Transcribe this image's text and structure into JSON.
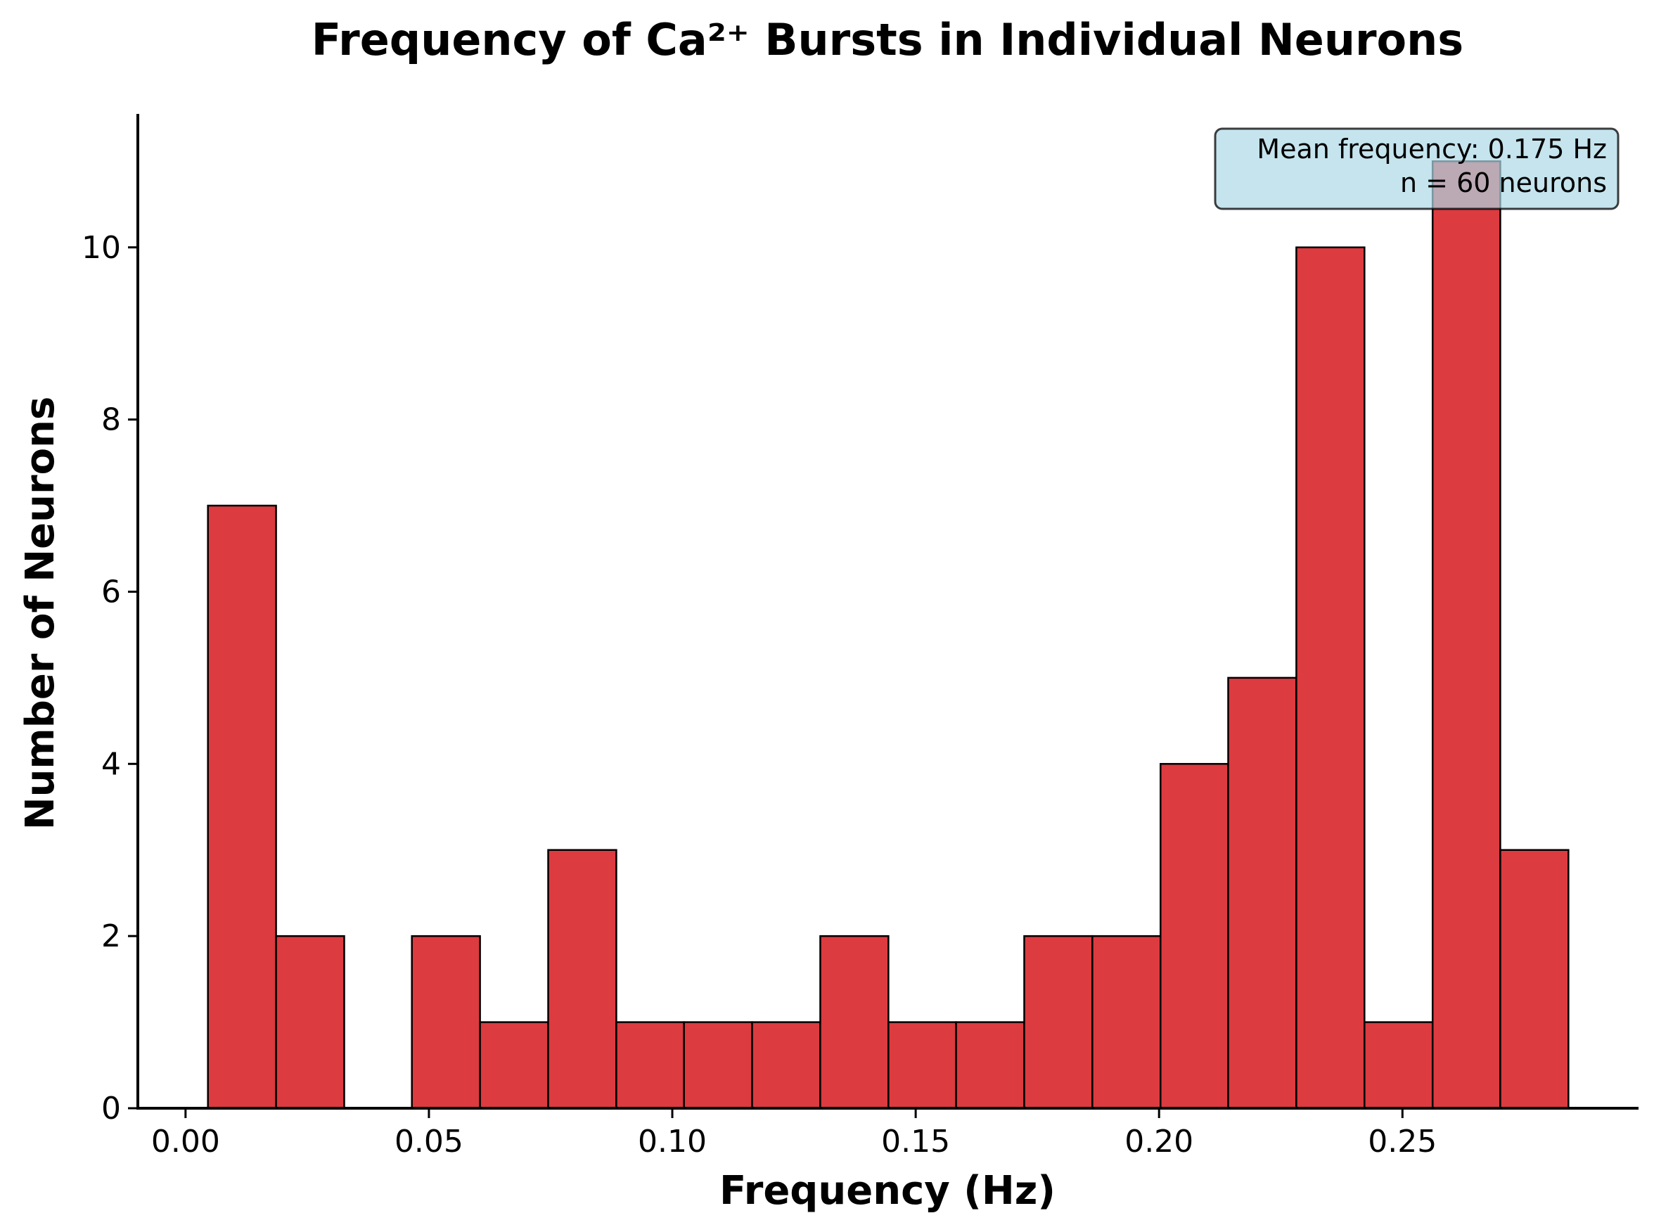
{
  "chart_data": {
    "type": "bar",
    "title": "Frequency of Ca²⁺ Bursts in Individual Neurons",
    "xlabel": "Frequency (Hz)",
    "ylabel": "Number of Neurons",
    "bin_edges": [
      0.0046,
      0.0186,
      0.0326,
      0.0465,
      0.0605,
      0.0745,
      0.0885,
      0.1024,
      0.1164,
      0.1304,
      0.1444,
      0.1583,
      0.1723,
      0.1863,
      0.2003,
      0.2142,
      0.2282,
      0.2422,
      0.2562,
      0.2701,
      0.2841
    ],
    "values": [
      7,
      2,
      0,
      2,
      1,
      3,
      1,
      1,
      1,
      2,
      1,
      1,
      2,
      2,
      4,
      5,
      10,
      1,
      11,
      3
    ],
    "xlim": [
      -0.0098,
      0.2985
    ],
    "ylim": [
      0,
      11.55
    ],
    "xticks": [
      0.0,
      0.05,
      0.1,
      0.15,
      0.2,
      0.25
    ],
    "xtick_labels": [
      "0.00",
      "0.05",
      "0.10",
      "0.15",
      "0.20",
      "0.25"
    ],
    "yticks": [
      0,
      2,
      4,
      6,
      8,
      10
    ],
    "ytick_labels": [
      "0",
      "2",
      "4",
      "6",
      "8",
      "10"
    ],
    "bar_color": "#dc3b40",
    "bar_edge_color": "#000000",
    "grid": false,
    "annotation": {
      "lines": [
        "Mean frequency: 0.175 Hz",
        "n = 60 neurons"
      ],
      "placement": "top-right",
      "background": "#add8e6",
      "border": "#000000"
    }
  }
}
